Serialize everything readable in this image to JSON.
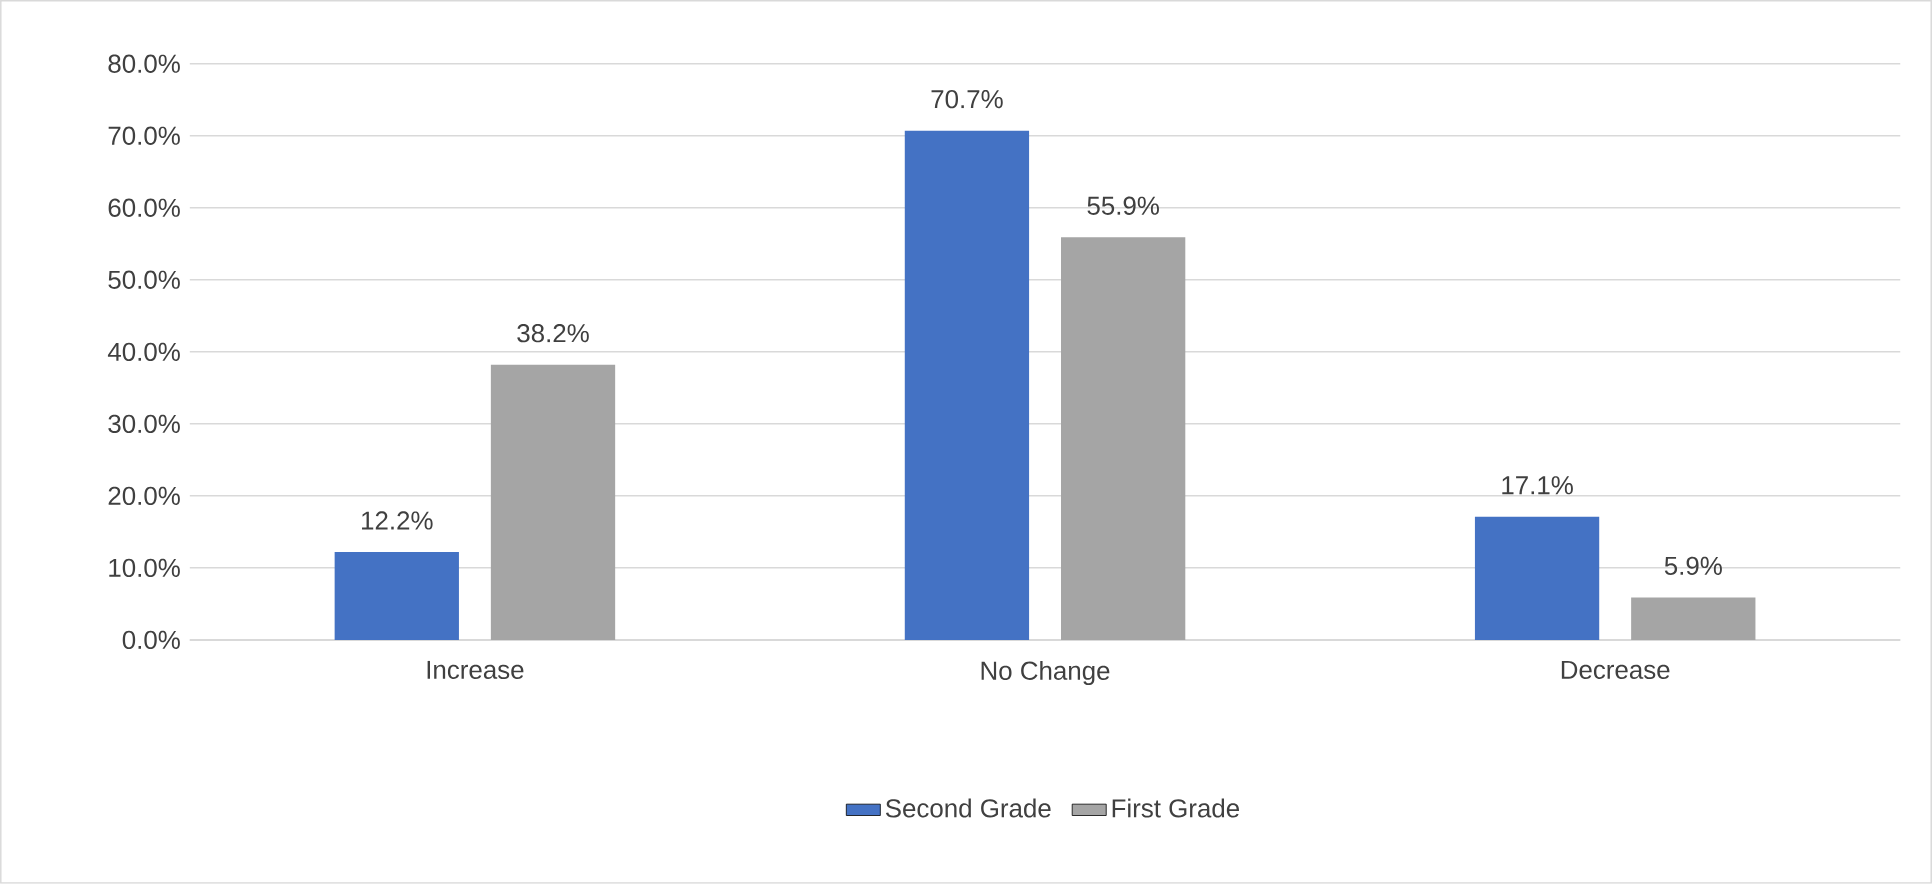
{
  "chart_data": {
    "type": "bar",
    "categories": [
      "Increase",
      "No Change",
      "Decrease"
    ],
    "series": [
      {
        "name": "Second Grade",
        "color": "#4472c4",
        "values": [
          12.2,
          70.7,
          17.1
        ],
        "value_labels": [
          "12.2%",
          "70.7%",
          "17.1%"
        ]
      },
      {
        "name": "First Grade",
        "color": "#a5a5a5",
        "values": [
          38.2,
          55.9,
          5.9
        ],
        "value_labels": [
          "38.2%",
          "55.9%",
          "5.9%"
        ]
      }
    ],
    "ylim": [
      0,
      80
    ],
    "yticks": [
      {
        "value": 0,
        "label": "0.0%"
      },
      {
        "value": 10,
        "label": "10.0%"
      },
      {
        "value": 20,
        "label": "20.0%"
      },
      {
        "value": 30,
        "label": "30.0%"
      },
      {
        "value": 40,
        "label": "40.0%"
      },
      {
        "value": 50,
        "label": "50.0%"
      },
      {
        "value": 60,
        "label": "60.0%"
      },
      {
        "value": 70,
        "label": "70.0%"
      },
      {
        "value": 80,
        "label": "80.0%"
      }
    ],
    "grid": "y",
    "legend": "bottom"
  }
}
